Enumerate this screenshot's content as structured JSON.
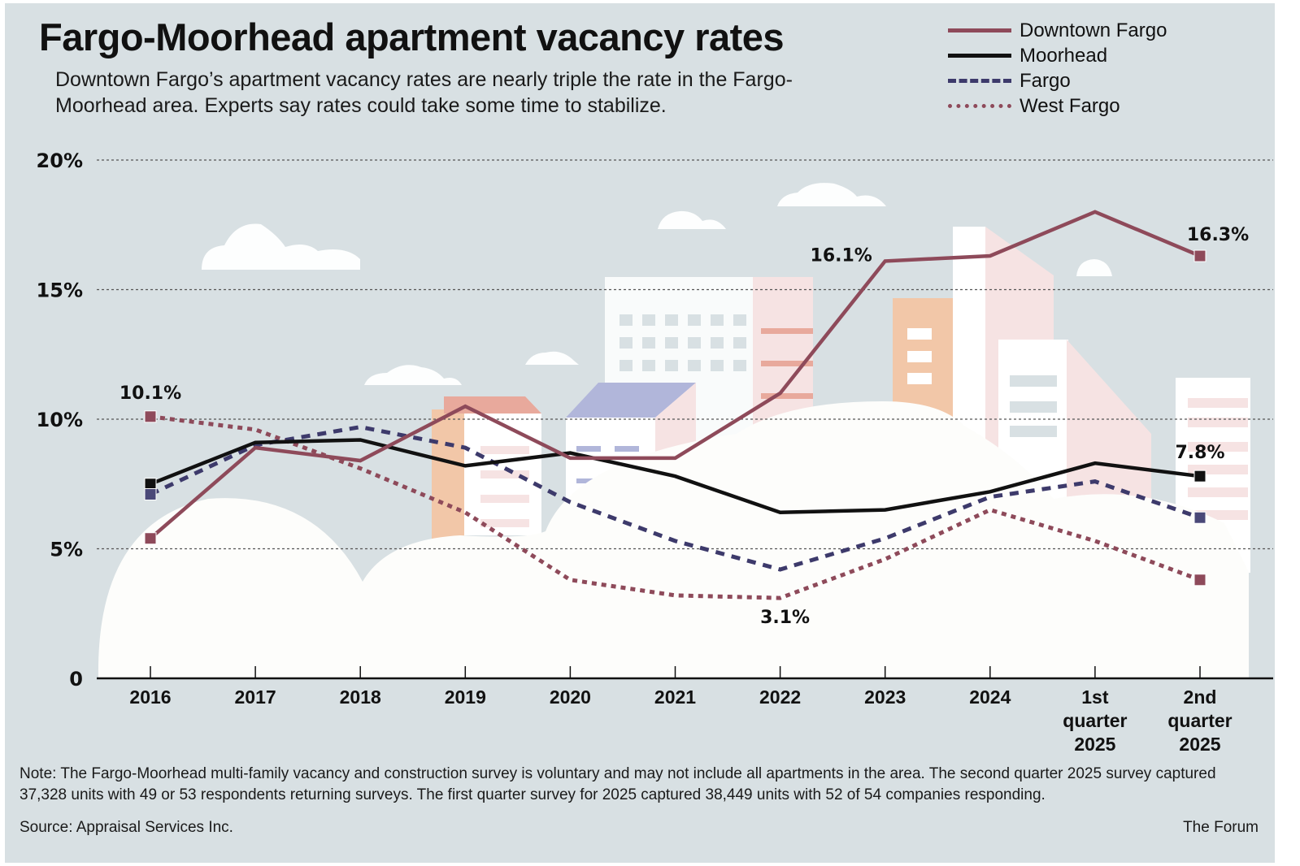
{
  "header": {
    "title": "Fargo-Moorhead apartment vacancy rates",
    "subtitle": "Downtown Fargo’s apartment vacancy rates are nearly triple the rate in the Fargo-Moorhead area. Experts say rates could take some time to stabilize."
  },
  "footer": {
    "note": "Note: The Fargo-Moorhead multi-family vacancy and construction survey is voluntary and may not include all apartments in the area. The second quarter 2025 survey captured 37,328 units with 49 or 53 respondents returning surveys. The first quarter survey for 2025 captured 38,449 units with 52 of 54 companies responding.",
    "source": "Source: Appraisal Services Inc.",
    "credit": "The Forum"
  },
  "chart_data": {
    "type": "line",
    "title": "Fargo-Moorhead apartment vacancy rates",
    "xlabel": "",
    "ylabel": "",
    "ylim": [
      0,
      20
    ],
    "yticks": [
      0,
      5,
      10,
      15,
      20
    ],
    "ytick_labels": [
      "0",
      "5%",
      "10%",
      "15%",
      "20%"
    ],
    "grid": "horizontal dotted",
    "legend_position": "top-right",
    "categories": [
      "2016",
      "2017",
      "2018",
      "2019",
      "2020",
      "2021",
      "2022",
      "2023",
      "2024",
      "1st quarter 2025",
      "2nd quarter 2025"
    ],
    "category_lines": [
      [
        "2016"
      ],
      [
        "2017"
      ],
      [
        "2018"
      ],
      [
        "2019"
      ],
      [
        "2020"
      ],
      [
        "2021"
      ],
      [
        "2022"
      ],
      [
        "2023"
      ],
      [
        "2024"
      ],
      [
        "1st",
        "quarter",
        "2025"
      ],
      [
        "2nd",
        "quarter",
        "2025"
      ]
    ],
    "series": [
      {
        "name": "Downtown Fargo",
        "color": "#8e4a5a",
        "style": "solid",
        "values": [
          5.4,
          8.9,
          8.4,
          10.5,
          8.5,
          8.5,
          11.0,
          16.1,
          16.3,
          18.0,
          16.3
        ]
      },
      {
        "name": "Moorhead",
        "color": "#111111",
        "style": "solid",
        "values": [
          7.5,
          9.1,
          9.2,
          8.2,
          8.7,
          7.8,
          6.4,
          6.5,
          7.2,
          8.3,
          7.8
        ]
      },
      {
        "name": "Fargo",
        "color": "#3d3a6b",
        "style": "dashed",
        "values": [
          7.1,
          9.0,
          9.7,
          8.9,
          6.8,
          5.3,
          4.2,
          5.4,
          7.0,
          7.6,
          6.2
        ]
      },
      {
        "name": "West Fargo",
        "color": "#8e4a5a",
        "style": "dotted",
        "values": [
          10.1,
          9.6,
          8.1,
          6.4,
          3.8,
          3.2,
          3.1,
          4.6,
          6.5,
          5.3,
          3.8
        ]
      }
    ],
    "annotations": [
      {
        "text": "10.1%",
        "series": "West Fargo",
        "category": "2016"
      },
      {
        "text": "16.1%",
        "series": "Downtown Fargo",
        "category": "2023"
      },
      {
        "text": "16.3%",
        "series": "Downtown Fargo",
        "category": "2nd quarter 2025"
      },
      {
        "text": "7.8%",
        "series": "Moorhead",
        "category": "2nd quarter 2025"
      },
      {
        "text": "3.1%",
        "series": "West Fargo",
        "category": "2022"
      }
    ],
    "endpoint_markers": "square markers at first and last points of each series"
  }
}
